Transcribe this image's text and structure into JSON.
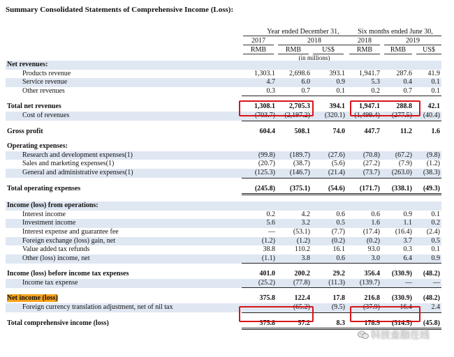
{
  "title": "Summary Consolidated Statements of Comprehensive Income (Loss):",
  "header": {
    "group1": "Year ended December 31,",
    "group2": "Six months ended June 30,",
    "years": [
      "2017",
      "2018",
      "2018",
      "2019"
    ],
    "currencies": [
      "RMB",
      "RMB",
      "US$",
      "RMB",
      "RMB",
      "US$"
    ],
    "unit_note": "(in millions)"
  },
  "rows": [
    {
      "label": "Net revenues:",
      "values": [
        "",
        "",
        "",
        "",
        "",
        ""
      ]
    },
    {
      "label": "Products revenue",
      "values": [
        "1,303.1",
        "2,698.6",
        "393.1",
        "1,941.7",
        "287.6",
        "41.9"
      ]
    },
    {
      "label": "Service revenue",
      "values": [
        "4.7",
        "6.0",
        "0.9",
        "5.3",
        "0.4",
        "0.1"
      ]
    },
    {
      "label": "Other revenues",
      "values": [
        "0.3",
        "0.7",
        "0.1",
        "0.2",
        "0.7",
        "0.1"
      ]
    },
    {
      "label": "",
      "values": [
        "",
        "",
        "",
        "",
        "",
        ""
      ]
    },
    {
      "label": "Total net revenues",
      "values": [
        "1,308.1",
        "2,705.3",
        "394.1",
        "1,947.1",
        "288.8",
        "42.1"
      ]
    },
    {
      "label": "Cost of revenues",
      "values": [
        "(703.7)",
        "(2,197.2)",
        "(320.1)",
        "(1,499.4)",
        "(277.5)",
        "(40.4)"
      ]
    },
    {
      "label": "",
      "values": [
        "",
        "",
        "",
        "",
        "",
        ""
      ]
    },
    {
      "label": "Gross profit",
      "values": [
        "604.4",
        "508.1",
        "74.0",
        "447.7",
        "11.2",
        "1.6"
      ]
    },
    {
      "label": "",
      "values": [
        "",
        "",
        "",
        "",
        "",
        ""
      ]
    },
    {
      "label": "Operating expenses:",
      "values": [
        "",
        "",
        "",
        "",
        "",
        ""
      ]
    },
    {
      "label": "Research and development expenses(1)",
      "values": [
        "(99.8)",
        "(189.7)",
        "(27.6)",
        "(70.8)",
        "(67.2)",
        "(9.8)"
      ]
    },
    {
      "label": "Sales and marketing expenses(1)",
      "values": [
        "(20.7)",
        "(38.7)",
        "(5.6)",
        "(27.2)",
        "(7.9)",
        "(1.2)"
      ]
    },
    {
      "label": "General and administrative expenses(1)",
      "values": [
        "(125.3)",
        "(146.7)",
        "(21.4)",
        "(73.7)",
        "(263.0)",
        "(38.3)"
      ]
    },
    {
      "label": "",
      "values": [
        "",
        "",
        "",
        "",
        "",
        ""
      ]
    },
    {
      "label": "Total operating expenses",
      "values": [
        "(245.8)",
        "(375.1)",
        "(54.6)",
        "(171.7)",
        "(338.1)",
        "(49.3)"
      ]
    },
    {
      "label": "",
      "values": [
        "",
        "",
        "",
        "",
        "",
        ""
      ]
    },
    {
      "label": "Income (loss) from operations:",
      "values": [
        "",
        "",
        "",
        "",
        "",
        ""
      ]
    },
    {
      "label": "Interest income",
      "values": [
        "0.2",
        "4.2",
        "0.6",
        "0.6",
        "0.9",
        "0.1"
      ]
    },
    {
      "label": "Investment income",
      "values": [
        "5.6",
        "3.2",
        "0.5",
        "1.6",
        "1.1",
        "0.2"
      ]
    },
    {
      "label": "Interest expense and guarantee fee",
      "values": [
        "—",
        "(53.1)",
        "(7.7)",
        "(17.4)",
        "(16.4)",
        "(2.4)"
      ]
    },
    {
      "label": "Foreign exchange (loss) gain, net",
      "values": [
        "(1.2)",
        "(1.2)",
        "(0.2)",
        "(0.2)",
        "3.7",
        "0.5"
      ]
    },
    {
      "label": "Value added tax refunds",
      "values": [
        "38.8",
        "110.2",
        "16.1",
        "93.0",
        "0.3",
        "0.1"
      ]
    },
    {
      "label": "Other (loss) income, net",
      "values": [
        "(1.1)",
        "3.8",
        "0.6",
        "3.0",
        "6.4",
        "0.9"
      ]
    },
    {
      "label": "",
      "values": [
        "",
        "",
        "",
        "",
        "",
        ""
      ]
    },
    {
      "label": "Income (loss) before income tax expenses",
      "values": [
        "401.0",
        "200.2",
        "29.2",
        "356.4",
        "(330.9)",
        "(48.2)"
      ]
    },
    {
      "label": "Income tax expense",
      "values": [
        "(25.2)",
        "(77.8)",
        "(11.3)",
        "(139.7)",
        "—",
        "—"
      ]
    },
    {
      "label": "",
      "values": [
        "",
        "",
        "",
        "",
        "",
        ""
      ]
    },
    {
      "label": "Net income (loss)",
      "values": [
        "375.8",
        "122.4",
        "17.8",
        "216.8",
        "(330.9)",
        "(48.2)"
      ]
    },
    {
      "label": "Foreign currency translation adjustment, net of nil tax",
      "values": [
        "—",
        "(65.2)",
        "(9.5)",
        "(37.9)",
        "16.4",
        "2.4"
      ]
    },
    {
      "label": "",
      "values": [
        "",
        "",
        "",
        "",
        "",
        ""
      ]
    },
    {
      "label": "Total comprehensive income (loss)",
      "values": [
        "375.8",
        "57.2",
        "8.3",
        "178.9",
        "(314.5)",
        "(45.8)"
      ]
    }
  ],
  "watermark": "科技金融在线",
  "colors": {
    "shade": "#dfe7f2",
    "highlight_box": "#d8141a",
    "label_highlight": "#f6a21b"
  }
}
